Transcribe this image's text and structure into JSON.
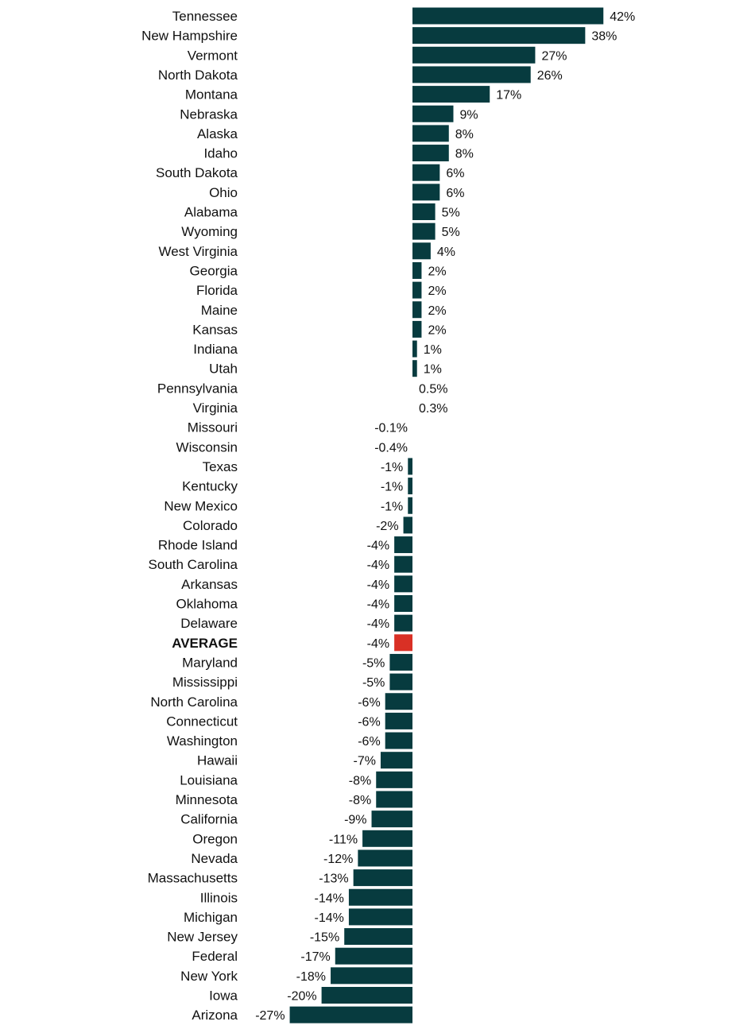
{
  "colors": {
    "bar": "#073b3f",
    "highlight": "#d93025",
    "text": "#111111"
  },
  "chart_data": {
    "type": "bar",
    "orientation": "horizontal",
    "title": "",
    "xlabel": "",
    "ylabel": "",
    "grid": false,
    "legend": "none",
    "xlim": [
      -27,
      42
    ],
    "highlight_category": "AVERAGE",
    "categories": [
      "Tennessee",
      "New Hampshire",
      "Vermont",
      "North Dakota",
      "Montana",
      "Nebraska",
      "Alaska",
      "Idaho",
      "South Dakota",
      "Ohio",
      "Alabama",
      "Wyoming",
      "West Virginia",
      "Georgia",
      "Florida",
      "Maine",
      "Kansas",
      "Indiana",
      "Utah",
      "Pennsylvania",
      "Virginia",
      "Missouri",
      "Wisconsin",
      "Texas",
      "Kentucky",
      "New Mexico",
      "Colorado",
      "Rhode Island",
      "South Carolina",
      "Arkansas",
      "Oklahoma",
      "Delaware",
      "AVERAGE",
      "Maryland",
      "Mississippi",
      "North Carolina",
      "Connecticut",
      "Washington",
      "Hawaii",
      "Louisiana",
      "Minnesota",
      "California",
      "Oregon",
      "Nevada",
      "Massachusetts",
      "Illinois",
      "Michigan",
      "New Jersey",
      "Federal",
      "New York",
      "Iowa",
      "Arizona"
    ],
    "values": [
      42,
      38,
      27,
      26,
      17,
      9,
      8,
      8,
      6,
      6,
      5,
      5,
      4,
      2,
      2,
      2,
      2,
      1,
      1,
      0.5,
      0.3,
      -0.1,
      -0.4,
      -1,
      -1,
      -1,
      -2,
      -4,
      -4,
      -4,
      -4,
      -4,
      -4,
      -5,
      -5,
      -6,
      -6,
      -6,
      -7,
      -8,
      -8,
      -9,
      -11,
      -12,
      -13,
      -14,
      -14,
      -15,
      -17,
      -18,
      -20,
      -27
    ],
    "value_labels": [
      "42%",
      "38%",
      "27%",
      "26%",
      "17%",
      "9%",
      "8%",
      "8%",
      "6%",
      "6%",
      "5%",
      "5%",
      "4%",
      "2%",
      "2%",
      "2%",
      "2%",
      "1%",
      "1%",
      "0.5%",
      "0.3%",
      "-0.1%",
      "-0.4%",
      "-1%",
      "-1%",
      "-1%",
      "-2%",
      "-4%",
      "-4%",
      "-4%",
      "-4%",
      "-4%",
      "-4%",
      "-5%",
      "-5%",
      "-6%",
      "-6%",
      "-6%",
      "-7%",
      "-8%",
      "-8%",
      "-9%",
      "-11%",
      "-12%",
      "-13%",
      "-14%",
      "-14%",
      "-15%",
      "-17%",
      "-18%",
      "-20%",
      "-27%"
    ]
  }
}
